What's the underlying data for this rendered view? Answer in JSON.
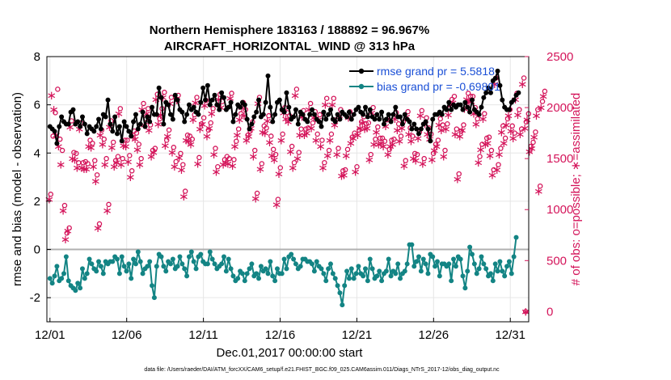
{
  "chart_data": {
    "type": "line",
    "title": "Northern Hemisphere 183163 / 188892 = 96.967%",
    "subtitle": "AIRCRAFT_HORIZONTAL_WIND @ 313 hPa",
    "xlabel": "Dec.01,2017 00:00:00 start",
    "ylabel": "rmse and bias (model - observation)",
    "y2label": "# of obs: o=possible; ∗=assimilated",
    "footnote": "data file: /Users/raeder/DAI/ATM_forcXX/CAM6_setup/f.e21.FHIST_BGC.f09_025.CAM6assim.011/Diags_NTrS_2017-12/obs_diag_output.nc",
    "x_ticks": [
      "12/01",
      "12/06",
      "12/11",
      "12/16",
      "12/21",
      "12/26",
      "12/31"
    ],
    "x_tick_days": [
      1,
      6,
      11,
      16,
      21,
      26,
      31
    ],
    "xlim": [
      0.8,
      32.2
    ],
    "ylim": [
      -3,
      8
    ],
    "y_ticks": [
      "-2",
      "0",
      "2",
      "4",
      "6",
      "8"
    ],
    "y2lim": [
      -100,
      2500
    ],
    "y2_ticks": [
      "0",
      "500",
      "1000",
      "1500",
      "2000",
      "2500"
    ],
    "grid": true,
    "legend_position": "top-right",
    "colors": {
      "rmse": "#000000",
      "bias": "#138484",
      "obs": "#d4145a",
      "zero": "#b0b0b0",
      "legend_text": "#1a4fd6"
    },
    "series": [
      {
        "name": "rmse grand pr = 5.5818",
        "axis": "left",
        "values": [
          5.1,
          5.0,
          4.9,
          4.4,
          5.1,
          5.5,
          5.3,
          5.2,
          5.2,
          5.7,
          5.8,
          5.2,
          5.3,
          5.1,
          5.5,
          5.2,
          4.8,
          5.1,
          5.0,
          4.9,
          5.1,
          5.4,
          5.0,
          5.6,
          5.5,
          6.2,
          5.2,
          4.9,
          5.5,
          4.8,
          5.1,
          4.5,
          5.3,
          5.1,
          4.9,
          4.7,
          5.3,
          5.6,
          5.0,
          5.2,
          5.7,
          5.1,
          5.5,
          5.3,
          5.9,
          5.6,
          5.6,
          6.7,
          6.3,
          5.2,
          6.1,
          6.0,
          5.6,
          5.4,
          6.4,
          6.2,
          5.8,
          5.7,
          5.3,
          5.6,
          6.0,
          5.8,
          5.9,
          5.7,
          5.6,
          6.1,
          6.7,
          6.2,
          6.8,
          6.0,
          6.2,
          6.4,
          6.0,
          5.8,
          6.5,
          6.3,
          5.8,
          5.9,
          6.1,
          5.3,
          5.6,
          6.0,
          5.9,
          6.1,
          6.0,
          5.4,
          5.0,
          5.2,
          5.5,
          5.7,
          6.2,
          5.5,
          5.6,
          6.1,
          7.2,
          5.9,
          5.3,
          5.6,
          6.1,
          6.2,
          5.8,
          5.7,
          6.5,
          5.9,
          5.4,
          5.5,
          5.8,
          5.2,
          5.7,
          5.6,
          5.4,
          5.3,
          5.6,
          5.8,
          5.6,
          5.4,
          5.3,
          5.1,
          5.7,
          5.4,
          5.6,
          5.8,
          5.4,
          5.3,
          5.6,
          5.4,
          5.7,
          5.6,
          5.5,
          5.7,
          5.4,
          5.6,
          5.8,
          5.9,
          5.7,
          5.6,
          5.9,
          5.5,
          5.8,
          5.5,
          5.4,
          5.6,
          5.4,
          5.7,
          5.2,
          5.4,
          5.6,
          5.3,
          5.6,
          5.9,
          5.5,
          5.5,
          5.2,
          5.6,
          5.4,
          5.3,
          5.0,
          5.2,
          5.0,
          4.8,
          5.0,
          5.2,
          5.3,
          5.0,
          4.5,
          5.4,
          5.6,
          5.6,
          5.7,
          5.6,
          5.9,
          5.8,
          6.1,
          5.8,
          6.0,
          5.9,
          6.0,
          6.0,
          5.8,
          6.1,
          5.9,
          5.7,
          6.2,
          5.8,
          5.7,
          5.6,
          5.9,
          6.3,
          6.5,
          6.7,
          6.5,
          7.0,
          7.1,
          7.4,
          6.8,
          6.2,
          5.9,
          5.8,
          5.8,
          6.1,
          6.2,
          6.4,
          6.5
        ]
      },
      {
        "name": "bias grand pr = -0.69801",
        "axis": "left",
        "values": [
          -1.2,
          -1.4,
          -1.1,
          -0.7,
          -1.3,
          -1.2,
          -1.0,
          -0.3,
          -1.3,
          -1.5,
          -1.6,
          -1.7,
          -1.4,
          -1.6,
          -0.8,
          -1.2,
          -1.0,
          -0.4,
          -0.6,
          -0.8,
          -0.9,
          -0.5,
          -0.7,
          -1.0,
          -0.5,
          -0.6,
          -0.5,
          -0.5,
          -0.3,
          -0.4,
          -1.0,
          -0.3,
          -0.7,
          -0.9,
          -0.6,
          -1.2,
          -0.4,
          -0.6,
          -0.1,
          -0.5,
          -1.0,
          -0.8,
          -0.7,
          -0.5,
          -1.5,
          -2.0,
          -0.7,
          -0.2,
          -0.3,
          -0.7,
          -0.9,
          -0.5,
          -0.6,
          -0.4,
          -0.8,
          -0.7,
          -0.3,
          -0.6,
          -0.8,
          -1.1,
          -0.3,
          -0.1,
          -0.5,
          -0.8,
          -0.3,
          -0.2,
          -0.5,
          -0.6,
          -0.6,
          -0.1,
          -0.4,
          -0.6,
          -0.8,
          -0.7,
          -0.6,
          -0.3,
          -0.9,
          -0.4,
          -0.8,
          -1.1,
          -1.3,
          -1.2,
          -0.9,
          -1.0,
          -1.3,
          -1.0,
          -0.8,
          -0.6,
          -1.1,
          -1.0,
          -1.2,
          -0.7,
          -0.9,
          -0.8,
          -1.0,
          -0.5,
          -1.1,
          -1.3,
          -0.8,
          -1.0,
          -1.0,
          -0.4,
          -0.8,
          -0.3,
          -0.2,
          -0.4,
          -0.6,
          -0.8,
          -0.7,
          -0.4,
          -0.4,
          -0.5,
          -0.5,
          -0.6,
          -0.9,
          -0.5,
          -0.7,
          -0.8,
          -1.0,
          -1.3,
          -0.8,
          -0.6,
          -1.0,
          -1.2,
          -1.5,
          -1.8,
          -2.3,
          -1.5,
          -0.9,
          -1.2,
          -0.8,
          -1.2,
          -1.0,
          -0.7,
          -1.0,
          -1.1,
          -0.8,
          -1.3,
          -0.4,
          -0.8,
          -1.2,
          -1.1,
          -0.9,
          -1.3,
          -1.0,
          -0.9,
          -0.4,
          -1.1,
          -0.9,
          -1.0,
          -0.6,
          -1.2,
          -1.0,
          -0.9,
          -0.6,
          0.2,
          0.2,
          -0.7,
          -0.5,
          -0.3,
          -0.9,
          -0.4,
          -0.6,
          -1.0,
          -0.2,
          -0.3,
          -0.7,
          -0.5,
          -1.1,
          -0.6,
          -0.6,
          -0.7,
          -0.6,
          -1.3,
          -0.4,
          -0.7,
          -0.3,
          -0.4,
          -1.1,
          -1.6,
          -0.9,
          0.1,
          -0.2,
          -0.6,
          -1.0,
          -0.8,
          -0.3,
          -0.6,
          -0.8,
          -1.1,
          -1.0,
          -1.3,
          -0.6,
          -0.9,
          -0.5,
          -0.9,
          -1.1,
          -0.7,
          -0.5,
          -1.0,
          -0.3,
          0.5
        ]
      }
    ],
    "obs_count": {
      "axis": "right",
      "possible": [
        1150,
        1720,
        1950,
        2180,
        1690,
        1580,
        1040,
        770,
        820,
        1870,
        1560,
        1550,
        1460,
        1850,
        1460,
        1470,
        1450,
        1680,
        1650,
        1480,
        1340,
        860,
        1780,
        1690,
        1500,
        1050,
        1870,
        1660,
        1480,
        1520,
        1990,
        1500,
        1680,
        1680,
        1530,
        1380,
        1770,
        1750,
        1640,
        1500,
        2040,
        1890,
        1990,
        1830,
        1580,
        1600,
        2130,
        1890,
        1990,
        2150,
        1680,
        1780,
        2100,
        1610,
        1470,
        2120,
        1550,
        1440,
        1180,
        1730,
        1720,
        1690,
        1930,
        2100,
        1510,
        1840,
        1900,
        2070,
        1780,
        1850,
        1990,
        1600,
        1420,
        2130,
        2060,
        1490,
        1520,
        1500,
        2140,
        1490,
        1670,
        1790,
        1940,
        2050,
        1980,
        1730,
        1770,
        1860,
        1580,
        1160,
        2100,
        1450,
        1820,
        1800,
        1920,
        1720,
        1590,
        1540,
        1100,
        1410,
        1740,
        2000,
        1950,
        1920,
        1620,
        1460,
        2180,
        1560,
        1790,
        1970,
        1790,
        1800,
        2040,
        1850,
        1960,
        1740,
        1930,
        1680,
        1460,
        2090,
        1580,
        1740,
        2090,
        1880,
        1600,
        1980,
        1380,
        1390,
        1590,
        1960,
        1710,
        1750,
        1420,
        1780,
        1860,
        1910,
        1840,
        1850,
        1540,
        2000,
        1690,
        1810,
        1700,
        1700,
        1670,
        1880,
        1590,
        1680,
        1690,
        1950,
        1840,
        1720,
        1860,
        1480,
        1960,
        1800,
        1720,
        1550,
        1540,
        1760,
        1970,
        1500,
        1900,
        1800,
        1740,
        1550,
        1640,
        1680,
        1890,
        1830,
        1580,
        1840,
        1990,
        2080,
        2110,
        1790,
        1350,
        1770,
        1830,
        2050,
        2140,
        2110,
        2110,
        2000,
        1890,
        1520,
        1640,
        1940,
        1700,
        1710,
        1580,
        1390,
        2290,
        1440,
        1600,
        1820,
        1700,
        1890,
        1980,
        1820,
        1750,
        2140,
        1980,
        1790,
        2290,
        1860,
        1940,
        1620,
        1660,
        1760,
        1980,
        1230,
        2060,
        2160
      ],
      "assimilated": [
        1100,
        2120,
        1980,
        1730,
        1620,
        1440,
        990,
        710,
        790,
        1810,
        1500,
        1490,
        1410,
        1790,
        1410,
        1400,
        1400,
        1620,
        1610,
        1420,
        1280,
        820,
        1730,
        1640,
        1440,
        990,
        1810,
        1610,
        1420,
        1460,
        1940,
        1440,
        1630,
        1620,
        1470,
        1320,
        1720,
        1690,
        1590,
        1440,
        1980,
        1830,
        1940,
        1780,
        1520,
        1560,
        2080,
        1840,
        1930,
        2100,
        1630,
        1720,
        2040,
        1560,
        1420,
        2070,
        1510,
        1390,
        1130,
        1680,
        1670,
        1640,
        1880,
        2050,
        1450,
        1790,
        1840,
        2020,
        1720,
        1800,
        1940,
        1540,
        1370,
        2080,
        2000,
        1440,
        1460,
        1450,
        2090,
        1430,
        1620,
        1730,
        1880,
        2000,
        1920,
        1680,
        1720,
        1800,
        1520,
        1110,
        2040,
        1400,
        1760,
        1750,
        1870,
        1660,
        1530,
        1490,
        1050,
        1350,
        1680,
        1950,
        1890,
        1860,
        1570,
        1410,
        2120,
        1500,
        1730,
        1910,
        1730,
        1750,
        1980,
        1800,
        1900,
        1680,
        1880,
        1620,
        1410,
        2030,
        1530,
        1680,
        2030,
        1830,
        1540,
        1920,
        1330,
        1340,
        1530,
        1900,
        1650,
        1700,
        1370,
        1730,
        1800,
        1850,
        1790,
        1800,
        1490,
        1950,
        1640,
        1760,
        1640,
        1650,
        1620,
        1820,
        1540,
        1620,
        1640,
        1890,
        1780,
        1670,
        1800,
        1430,
        1910,
        1740,
        1670,
        1500,
        1480,
        1700,
        1920,
        1450,
        1840,
        1740,
        1690,
        1490,
        1580,
        1620,
        1830,
        1780,
        1520,
        1790,
        1930,
        2030,
        2050,
        1740,
        1300,
        1720,
        1780,
        1990,
        2080,
        2060,
        2060,
        1940,
        1840,
        1460,
        1590,
        1890,
        1640,
        1650,
        1530,
        1340,
        2230,
        1390,
        1540,
        1760,
        1650,
        1830,
        1920,
        1770,
        1700,
        2080,
        1930,
        1740,
        2230,
        1800,
        1880,
        1570,
        1600,
        1710,
        1920,
        1180,
        2000,
        2110
      ]
    },
    "extra_right_points": {
      "possible": [
        {
          "day": 32.0,
          "value": 0
        }
      ],
      "assimilated": [
        {
          "day": 32.0,
          "value": 0
        }
      ]
    }
  }
}
